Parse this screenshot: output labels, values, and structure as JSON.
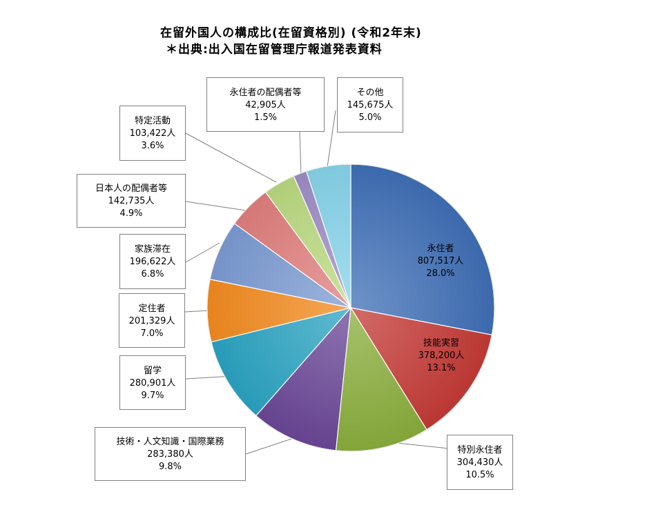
{
  "title_line1": "在留外国人の構成比(在留資格別) (令和2年末)",
  "title_line2": "＊出典:出入国在留管理庁報道発表資料",
  "chart_data": {
    "type": "pie",
    "start_angle_deg": 0,
    "direction": "clockwise",
    "slices": [
      {
        "name": "永住者",
        "count": "807,517人",
        "pct": "28.0%",
        "value": 28.0,
        "color": "#3f6fb6"
      },
      {
        "name": "技能実習",
        "count": "378,200人",
        "pct": "13.1%",
        "value": 13.1,
        "color": "#c43a36"
      },
      {
        "name": "特別永住者",
        "count": "304,430人",
        "pct": "10.5%",
        "value": 10.5,
        "color": "#89ad3b"
      },
      {
        "name": "技術・人文知識・国際業務",
        "count": "283,380人",
        "pct": "9.8%",
        "value": 9.8,
        "color": "#6a4697"
      },
      {
        "name": "留学",
        "count": "280,901人",
        "pct": "9.7%",
        "value": 9.7,
        "color": "#2aa3c2"
      },
      {
        "name": "定住者",
        "count": "201,329人",
        "pct": "7.0%",
        "value": 7.0,
        "color": "#f28a1e"
      },
      {
        "name": "家族滞在",
        "count": "196,622人",
        "pct": "6.8%",
        "value": 6.8,
        "color": "#7b9bd2"
      },
      {
        "name": "日本人の配偶者等",
        "count": "142,735人",
        "pct": "4.9%",
        "value": 4.9,
        "color": "#df7e7c"
      },
      {
        "name": "特定活動",
        "count": "103,422人",
        "pct": "3.6%",
        "value": 3.6,
        "color": "#b9d97f"
      },
      {
        "name": "永住者の配偶者等",
        "count": "42,905人",
        "pct": "1.5%",
        "value": 1.5,
        "color": "#9d8cc4"
      },
      {
        "name": "その他",
        "count": "145,675人",
        "pct": "5.0%",
        "value": 5.0,
        "color": "#86d3ea"
      }
    ]
  }
}
